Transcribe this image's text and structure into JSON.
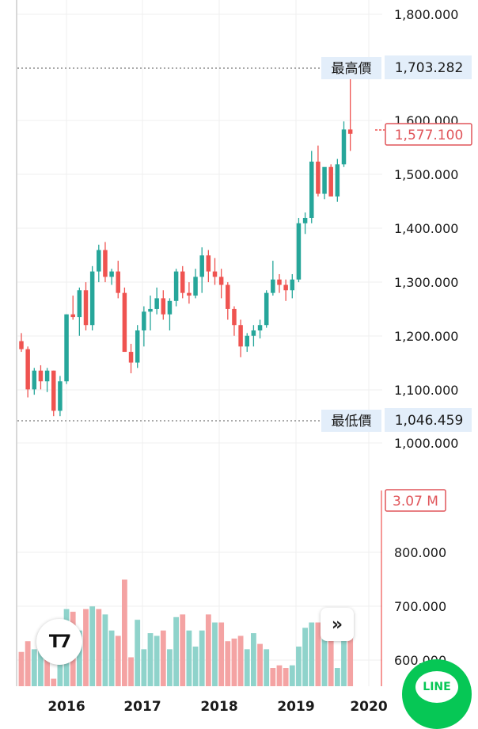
{
  "chart_data": {
    "type": "candlestick",
    "y_ticks": [
      "1,800.000",
      "1,600.000",
      "1,500.000",
      "1,400.000",
      "1,300.000",
      "1,200.000",
      "1,100.000",
      "1,000.000",
      "800.000",
      "700.000",
      "600.000"
    ],
    "x_ticks": [
      "2016",
      "2017",
      "2018",
      "2019",
      "2020"
    ],
    "ylim": [
      550,
      1830
    ],
    "high_label": "最高價",
    "high_value": "1,703.282",
    "low_label": "最低價",
    "low_value": "1,046.459",
    "last_price": "1,577.100",
    "last_volume": "3.07 M",
    "colors": {
      "up": "#26a69a",
      "down": "#ef5350",
      "vol_up": "#8fd3cb",
      "vol_down": "#f4a3a3",
      "tag_bg": "#e3eefa",
      "grid": "#efefef"
    },
    "candles": [
      [
        1190,
        1205,
        1170,
        1175
      ],
      [
        1175,
        1180,
        1085,
        1100
      ],
      [
        1100,
        1140,
        1090,
        1135
      ],
      [
        1135,
        1145,
        1100,
        1115
      ],
      [
        1115,
        1140,
        1095,
        1135
      ],
      [
        1135,
        1135,
        1050,
        1060
      ],
      [
        1060,
        1125,
        1050,
        1115
      ],
      [
        1115,
        1240,
        1110,
        1240
      ],
      [
        1240,
        1275,
        1230,
        1235
      ],
      [
        1235,
        1290,
        1200,
        1285
      ],
      [
        1285,
        1300,
        1210,
        1220
      ],
      [
        1220,
        1330,
        1210,
        1320
      ],
      [
        1320,
        1370,
        1300,
        1360
      ],
      [
        1360,
        1375,
        1300,
        1310
      ],
      [
        1310,
        1325,
        1295,
        1320
      ],
      [
        1320,
        1340,
        1270,
        1280
      ],
      [
        1280,
        1290,
        1170,
        1170
      ],
      [
        1170,
        1185,
        1130,
        1150
      ],
      [
        1150,
        1220,
        1140,
        1210
      ],
      [
        1210,
        1255,
        1180,
        1245
      ],
      [
        1245,
        1275,
        1210,
        1250
      ],
      [
        1250,
        1290,
        1240,
        1270
      ],
      [
        1270,
        1285,
        1230,
        1240
      ],
      [
        1240,
        1270,
        1210,
        1265
      ],
      [
        1265,
        1325,
        1255,
        1320
      ],
      [
        1320,
        1330,
        1270,
        1280
      ],
      [
        1280,
        1300,
        1260,
        1275
      ],
      [
        1275,
        1325,
        1270,
        1310
      ],
      [
        1310,
        1365,
        1280,
        1350
      ],
      [
        1350,
        1360,
        1300,
        1320
      ],
      [
        1320,
        1345,
        1295,
        1310
      ],
      [
        1310,
        1325,
        1270,
        1295
      ],
      [
        1295,
        1300,
        1230,
        1250
      ],
      [
        1250,
        1255,
        1200,
        1220
      ],
      [
        1220,
        1230,
        1160,
        1180
      ],
      [
        1180,
        1205,
        1170,
        1200
      ],
      [
        1200,
        1220,
        1180,
        1210
      ],
      [
        1210,
        1230,
        1195,
        1220
      ],
      [
        1220,
        1285,
        1215,
        1280
      ],
      [
        1280,
        1340,
        1275,
        1305
      ],
      [
        1305,
        1315,
        1280,
        1295
      ],
      [
        1295,
        1305,
        1265,
        1285
      ],
      [
        1285,
        1315,
        1270,
        1305
      ],
      [
        1305,
        1420,
        1300,
        1410
      ],
      [
        1410,
        1430,
        1390,
        1420
      ],
      [
        1420,
        1545,
        1410,
        1525
      ],
      [
        1525,
        1555,
        1460,
        1465
      ],
      [
        1465,
        1510,
        1455,
        1515
      ],
      [
        1515,
        1520,
        1460,
        1460
      ],
      [
        1460,
        1530,
        1450,
        1520
      ],
      [
        1520,
        1600,
        1515,
        1585
      ],
      [
        1585,
        1703,
        1545,
        1577
      ]
    ],
    "volumes": [
      [
        610,
        false
      ],
      [
        630,
        false
      ],
      [
        615,
        true
      ],
      [
        640,
        true
      ],
      [
        625,
        false
      ],
      [
        560,
        false
      ],
      [
        660,
        true
      ],
      [
        690,
        true
      ],
      [
        685,
        false
      ],
      [
        650,
        true
      ],
      [
        690,
        false
      ],
      [
        695,
        true
      ],
      [
        690,
        false
      ],
      [
        680,
        true
      ],
      [
        650,
        true
      ],
      [
        640,
        false
      ],
      [
        745,
        false
      ],
      [
        600,
        false
      ],
      [
        670,
        true
      ],
      [
        615,
        true
      ],
      [
        645,
        true
      ],
      [
        640,
        true
      ],
      [
        650,
        false
      ],
      [
        615,
        true
      ],
      [
        675,
        true
      ],
      [
        680,
        false
      ],
      [
        650,
        true
      ],
      [
        620,
        true
      ],
      [
        650,
        true
      ],
      [
        680,
        false
      ],
      [
        665,
        true
      ],
      [
        665,
        false
      ],
      [
        630,
        false
      ],
      [
        635,
        false
      ],
      [
        640,
        false
      ],
      [
        615,
        true
      ],
      [
        645,
        true
      ],
      [
        625,
        false
      ],
      [
        615,
        true
      ],
      [
        580,
        false
      ],
      [
        585,
        false
      ],
      [
        580,
        false
      ],
      [
        585,
        true
      ],
      [
        620,
        true
      ],
      [
        655,
        true
      ],
      [
        665,
        true
      ],
      [
        665,
        false
      ],
      [
        655,
        true
      ],
      [
        640,
        false
      ],
      [
        580,
        true
      ],
      [
        640,
        true
      ],
      [
        675,
        false
      ]
    ]
  }
}
